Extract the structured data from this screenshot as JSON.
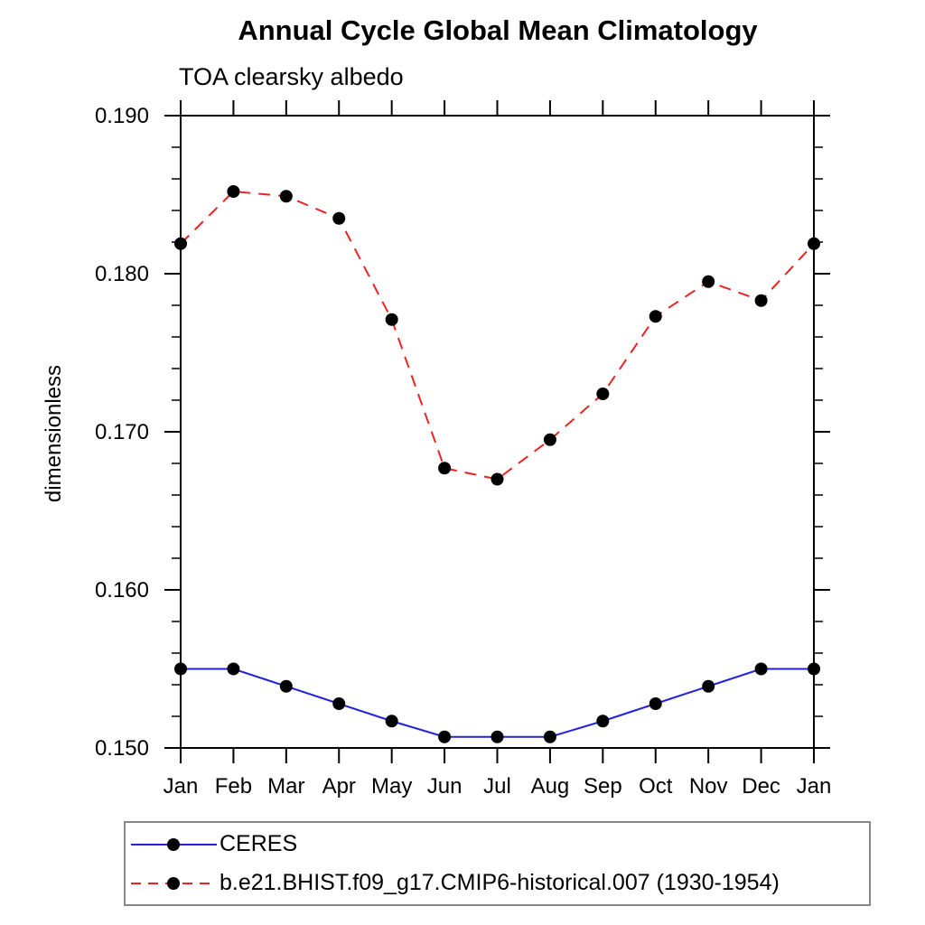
{
  "page": {
    "background": "#ffffff"
  },
  "chart_data": {
    "type": "line",
    "title": "Annual Cycle Global Mean Climatology",
    "subtitle": "TOA clearsky albedo",
    "xlabel": "",
    "ylabel": "dimensionless",
    "categories": [
      "Jan",
      "Feb",
      "Mar",
      "Apr",
      "May",
      "Jun",
      "Jul",
      "Aug",
      "Sep",
      "Oct",
      "Nov",
      "Dec",
      "Jan"
    ],
    "ylim": [
      0.15,
      0.19
    ],
    "ytick_major": [
      0.15,
      0.16,
      0.17,
      0.18,
      0.19
    ],
    "ytick_labels": [
      "0.150",
      "0.160",
      "0.170",
      "0.180",
      "0.190"
    ],
    "ytick_minor_step": 0.002,
    "grid": false,
    "legend_position": "bottom",
    "frame_color": "#000000",
    "series": [
      {
        "name": "CERES",
        "color": "#2222dd",
        "style": "solid",
        "marker": "circle",
        "marker_color": "#000000",
        "values": [
          0.155,
          0.155,
          0.1539,
          0.1528,
          0.1517,
          0.1507,
          0.1507,
          0.1507,
          0.1517,
          0.1528,
          0.1539,
          0.155,
          0.155
        ]
      },
      {
        "name": "b.e21.BHIST.f09_g17.CMIP6-historical.007 (1930-1954)",
        "color": "#ee2222",
        "style": "dashed",
        "marker": "circle",
        "marker_color": "#000000",
        "values": [
          0.1819,
          0.1852,
          0.1849,
          0.1835,
          0.1771,
          0.1677,
          0.167,
          0.1695,
          0.1724,
          0.1773,
          0.1795,
          0.1783,
          0.1819
        ]
      }
    ],
    "legend_border_color": "#888888"
  }
}
